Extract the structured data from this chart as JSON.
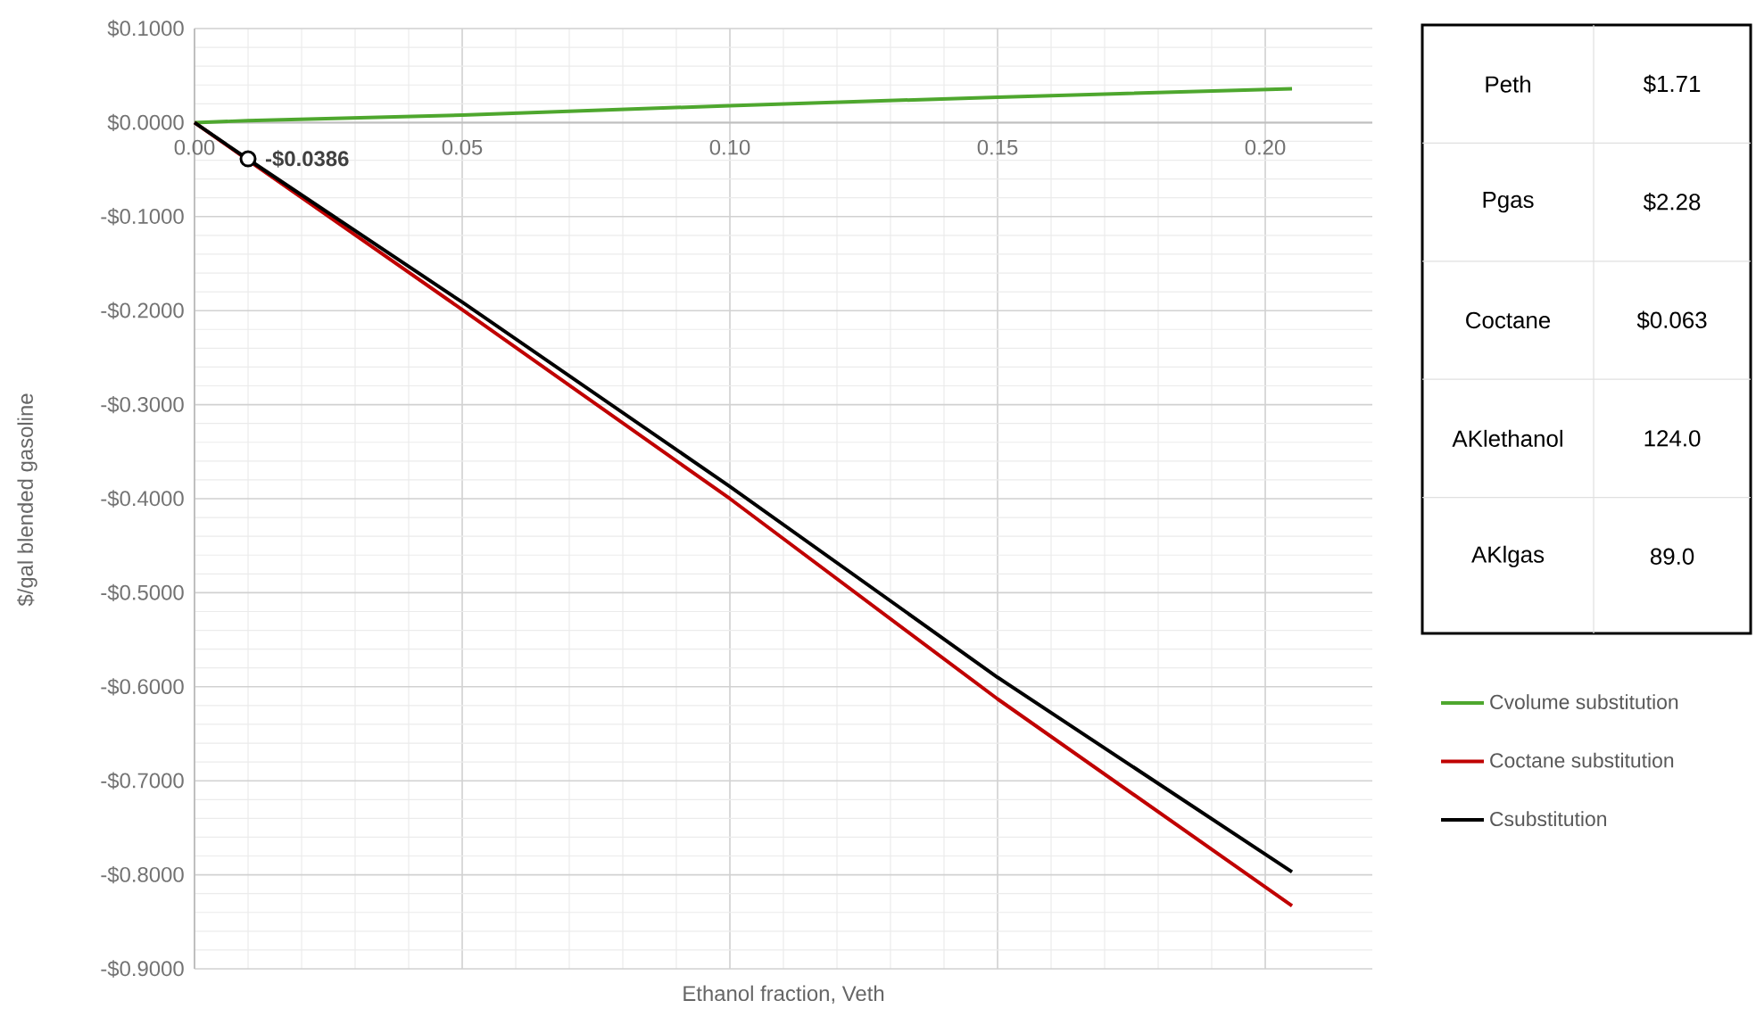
{
  "chart_data": [
    {
      "type": "line",
      "xlabel": "Ethanol fraction, Veth",
      "ylabel": "$/gal blended gasoline",
      "xlim": [
        0,
        0.22
      ],
      "ylim": [
        -0.9,
        0.1
      ],
      "xticks": [
        {
          "value": 0,
          "label": "0.00"
        },
        0.05,
        {
          "value": 0.1,
          "label": "0.10"
        },
        0.15,
        {
          "value": 0.2,
          "label": "0.20"
        }
      ],
      "yticks": [
        {
          "value": -0.9,
          "label": "-$0.9000"
        },
        {
          "value": -0.8,
          "label": "-$0.8000"
        },
        {
          "value": -0.7,
          "label": "-$0.7000"
        },
        {
          "value": -0.6,
          "label": "-$0.6000"
        },
        {
          "value": -0.5,
          "label": "-$0.5000"
        },
        {
          "value": -0.4,
          "label": "-$0.4000"
        },
        {
          "value": -0.3,
          "label": "-$0.3000"
        },
        {
          "value": -0.2,
          "label": "-$0.2000"
        },
        {
          "value": -0.1,
          "label": "-$0.1000"
        },
        {
          "value": 0,
          "label": "$0.0000"
        },
        {
          "value": 0.1,
          "label": "$0.1000"
        }
      ],
      "grid": true,
      "legend": "right",
      "marker": "none",
      "line_style": "solid",
      "x": [
        0,
        0.01,
        0.05,
        0.1,
        0.15,
        0.205
      ],
      "series": [
        {
          "name": "Cvolume substitution",
          "color": "#4ea72e",
          "values": [
            0,
            0.002,
            0.008,
            0.018,
            0.027,
            0.036
          ]
        },
        {
          "name": "Coctane substitution",
          "color": "#c00000",
          "values": [
            0,
            -0.04,
            -0.199,
            -0.4,
            -0.613,
            -0.833
          ]
        },
        {
          "name": "Csubstitution",
          "color": "#000000",
          "values": [
            0,
            -0.039,
            -0.191,
            -0.387,
            -0.59,
            -0.797
          ]
        }
      ],
      "annotations": [
        {
          "text": "-$0.0386",
          "x": 0.01,
          "y": -0.0386
        }
      ]
    },
    {
      "type": "other",
      "annotations": [
        "Peth",
        "$1.71",
        "Pgas",
        "$2.28",
        "Coctane",
        "$0.063",
        "AKlethanol",
        "124.0",
        "AKlgas",
        "89.0"
      ]
    }
  ]
}
